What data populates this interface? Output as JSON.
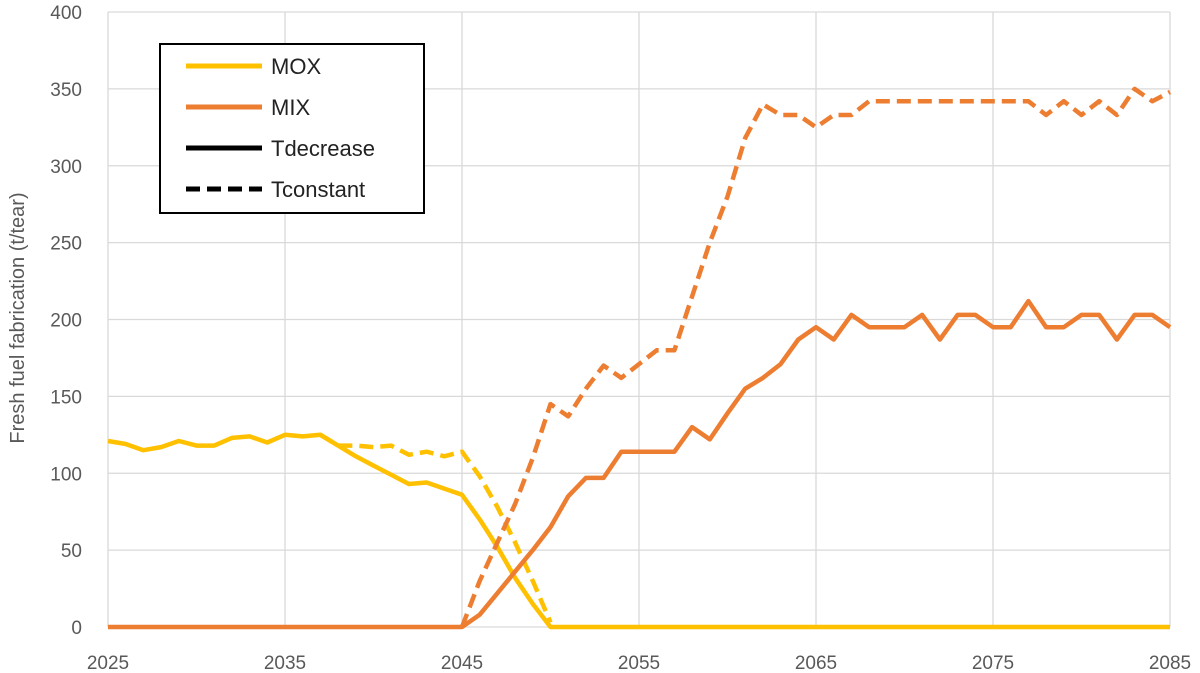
{
  "chart_data": {
    "type": "line",
    "title": "",
    "xlabel": "",
    "ylabel": "Fresh fuel fabrication (t/tear)",
    "xlim": [
      2025,
      2085
    ],
    "ylim": [
      0,
      400
    ],
    "x_ticks": [
      "2025",
      "2035",
      "2045",
      "2055",
      "2065",
      "2075",
      "2085"
    ],
    "y_ticks": [
      "0",
      "50",
      "100",
      "150",
      "200",
      "250",
      "300",
      "350",
      "400"
    ],
    "grid": true,
    "legend_position": "top-left",
    "legend": [
      {
        "label": "MOX",
        "color": "#FFC000",
        "dash": "solid"
      },
      {
        "label": "MIX",
        "color": "#ED7D31",
        "dash": "solid"
      },
      {
        "label": "Tdecrease",
        "color": "#000000",
        "dash": "solid"
      },
      {
        "label": "Tconstant",
        "color": "#000000",
        "dash": "dashed"
      }
    ],
    "series": [
      {
        "fuel": "MOX",
        "scenario": "Tdecrease",
        "color": "#FFC000",
        "dash": "solid",
        "points": [
          [
            2025,
            121
          ],
          [
            2026,
            119
          ],
          [
            2027,
            115
          ],
          [
            2028,
            117
          ],
          [
            2029,
            121
          ],
          [
            2030,
            118
          ],
          [
            2031,
            118
          ],
          [
            2032,
            123
          ],
          [
            2033,
            124
          ],
          [
            2034,
            120
          ],
          [
            2035,
            125
          ],
          [
            2036,
            124
          ],
          [
            2037,
            125
          ],
          [
            2038,
            118
          ],
          [
            2039,
            111
          ],
          [
            2040,
            105
          ],
          [
            2041,
            99
          ],
          [
            2042,
            93
          ],
          [
            2043,
            94
          ],
          [
            2044,
            90
          ],
          [
            2045,
            86
          ],
          [
            2046,
            70
          ],
          [
            2047,
            52
          ],
          [
            2048,
            32
          ],
          [
            2049,
            15
          ],
          [
            2050,
            0
          ],
          [
            2085,
            0
          ]
        ]
      },
      {
        "fuel": "MOX",
        "scenario": "Tconstant",
        "color": "#FFC000",
        "dash": "dashed",
        "points": [
          [
            2037,
            125
          ],
          [
            2038,
            118
          ],
          [
            2039,
            118
          ],
          [
            2040,
            117
          ],
          [
            2041,
            118
          ],
          [
            2042,
            112
          ],
          [
            2043,
            114
          ],
          [
            2044,
            111
          ],
          [
            2045,
            114
          ],
          [
            2046,
            98
          ],
          [
            2047,
            78
          ],
          [
            2048,
            55
          ],
          [
            2049,
            30
          ],
          [
            2050,
            3
          ]
        ]
      },
      {
        "fuel": "MIX",
        "scenario": "Tdecrease",
        "color": "#ED7D31",
        "dash": "solid",
        "points": [
          [
            2025,
            0
          ],
          [
            2045,
            0
          ],
          [
            2046,
            8
          ],
          [
            2047,
            22
          ],
          [
            2048,
            36
          ],
          [
            2049,
            50
          ],
          [
            2050,
            65
          ],
          [
            2051,
            85
          ],
          [
            2052,
            97
          ],
          [
            2053,
            97
          ],
          [
            2054,
            114
          ],
          [
            2055,
            114
          ],
          [
            2056,
            114
          ],
          [
            2057,
            114
          ],
          [
            2058,
            130
          ],
          [
            2059,
            122
          ],
          [
            2060,
            139
          ],
          [
            2061,
            155
          ],
          [
            2062,
            162
          ],
          [
            2063,
            171
          ],
          [
            2064,
            187
          ],
          [
            2065,
            195
          ],
          [
            2066,
            187
          ],
          [
            2067,
            203
          ],
          [
            2068,
            195
          ],
          [
            2069,
            195
          ],
          [
            2070,
            195
          ],
          [
            2071,
            203
          ],
          [
            2072,
            187
          ],
          [
            2073,
            203
          ],
          [
            2074,
            203
          ],
          [
            2075,
            195
          ],
          [
            2076,
            195
          ],
          [
            2077,
            212
          ],
          [
            2078,
            195
          ],
          [
            2079,
            195
          ],
          [
            2080,
            203
          ],
          [
            2081,
            203
          ],
          [
            2082,
            187
          ],
          [
            2083,
            203
          ],
          [
            2084,
            203
          ],
          [
            2085,
            195
          ]
        ]
      },
      {
        "fuel": "MIX",
        "scenario": "Tconstant",
        "color": "#ED7D31",
        "dash": "dashed",
        "points": [
          [
            2045,
            0
          ],
          [
            2046,
            30
          ],
          [
            2047,
            55
          ],
          [
            2048,
            80
          ],
          [
            2049,
            110
          ],
          [
            2050,
            145
          ],
          [
            2051,
            137
          ],
          [
            2052,
            155
          ],
          [
            2053,
            170
          ],
          [
            2054,
            162
          ],
          [
            2055,
            171
          ],
          [
            2056,
            180
          ],
          [
            2057,
            180
          ],
          [
            2058,
            215
          ],
          [
            2059,
            250
          ],
          [
            2060,
            280
          ],
          [
            2061,
            318
          ],
          [
            2062,
            340
          ],
          [
            2063,
            333
          ],
          [
            2064,
            333
          ],
          [
            2065,
            325
          ],
          [
            2066,
            333
          ],
          [
            2067,
            333
          ],
          [
            2068,
            342
          ],
          [
            2069,
            342
          ],
          [
            2070,
            342
          ],
          [
            2071,
            342
          ],
          [
            2072,
            342
          ],
          [
            2073,
            342
          ],
          [
            2074,
            342
          ],
          [
            2075,
            342
          ],
          [
            2076,
            342
          ],
          [
            2077,
            342
          ],
          [
            2078,
            333
          ],
          [
            2079,
            342
          ],
          [
            2080,
            333
          ],
          [
            2081,
            342
          ],
          [
            2082,
            333
          ],
          [
            2083,
            350
          ],
          [
            2084,
            342
          ],
          [
            2085,
            348
          ]
        ]
      }
    ]
  }
}
